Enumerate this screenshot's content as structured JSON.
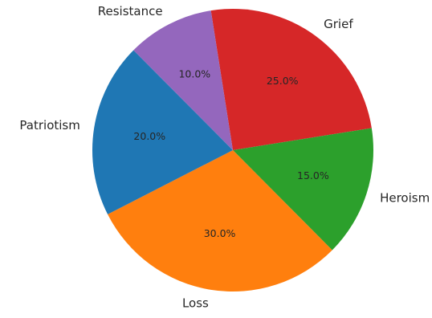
{
  "chart_data": {
    "type": "pie",
    "title": "",
    "start_angle_deg": 0,
    "direction": "clockwise",
    "categories": [
      "Grief",
      "Heroism",
      "Loss",
      "Patriotism",
      "Resistance"
    ],
    "values": [
      25,
      15,
      30,
      20,
      10
    ],
    "percent_labels": [
      "25.0%",
      "15.0%",
      "30.0%",
      "20.0%",
      "10.0%"
    ],
    "colors": [
      "#d62728",
      "#2ca02c",
      "#ff7f0e",
      "#1f77b4",
      "#9467bd"
    ],
    "legend": "none"
  }
}
